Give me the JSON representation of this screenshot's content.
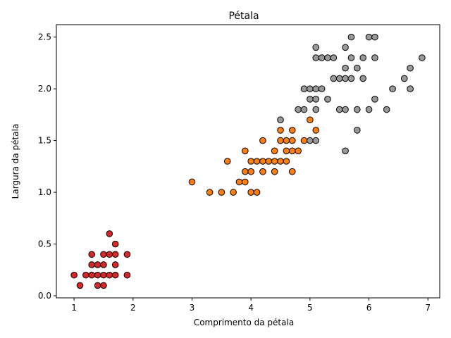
{
  "chart_data": {
    "type": "scatter",
    "title": "Pétala",
    "xlabel": "Comprimento da pétala",
    "ylabel": "Largura da pétala",
    "xlim": [
      0.7,
      7.2
    ],
    "ylim": [
      -0.02,
      2.62
    ],
    "xticks": [
      "1",
      "2",
      "3",
      "4",
      "5",
      "6",
      "7"
    ],
    "yticks": [
      "0.0",
      "0.5",
      "1.0",
      "1.5",
      "2.0",
      "2.5"
    ],
    "grid": false,
    "marker_edge_color": "#000000",
    "series": [
      {
        "color": "#d62728",
        "points": [
          [
            1.0,
            0.2
          ],
          [
            1.1,
            0.1
          ],
          [
            1.2,
            0.2
          ],
          [
            1.3,
            0.2
          ],
          [
            1.3,
            0.3
          ],
          [
            1.3,
            0.4
          ],
          [
            1.4,
            0.1
          ],
          [
            1.4,
            0.2
          ],
          [
            1.4,
            0.3
          ],
          [
            1.5,
            0.1
          ],
          [
            1.5,
            0.2
          ],
          [
            1.5,
            0.3
          ],
          [
            1.5,
            0.4
          ],
          [
            1.6,
            0.2
          ],
          [
            1.6,
            0.4
          ],
          [
            1.6,
            0.6
          ],
          [
            1.7,
            0.2
          ],
          [
            1.7,
            0.3
          ],
          [
            1.7,
            0.4
          ],
          [
            1.7,
            0.5
          ],
          [
            1.9,
            0.2
          ],
          [
            1.9,
            0.4
          ]
        ]
      },
      {
        "color": "#ff7f0e",
        "points": [
          [
            3.0,
            1.1
          ],
          [
            3.3,
            1.0
          ],
          [
            3.5,
            1.0
          ],
          [
            3.6,
            1.3
          ],
          [
            3.7,
            1.0
          ],
          [
            3.8,
            1.1
          ],
          [
            3.9,
            1.1
          ],
          [
            3.9,
            1.2
          ],
          [
            3.9,
            1.4
          ],
          [
            4.0,
            1.0
          ],
          [
            4.0,
            1.2
          ],
          [
            4.0,
            1.3
          ],
          [
            4.1,
            1.0
          ],
          [
            4.1,
            1.3
          ],
          [
            4.2,
            1.2
          ],
          [
            4.2,
            1.3
          ],
          [
            4.2,
            1.5
          ],
          [
            4.3,
            1.3
          ],
          [
            4.4,
            1.2
          ],
          [
            4.4,
            1.3
          ],
          [
            4.4,
            1.4
          ],
          [
            4.5,
            1.3
          ],
          [
            4.5,
            1.5
          ],
          [
            4.5,
            1.6
          ],
          [
            4.6,
            1.3
          ],
          [
            4.6,
            1.4
          ],
          [
            4.6,
            1.5
          ],
          [
            4.7,
            1.2
          ],
          [
            4.7,
            1.4
          ],
          [
            4.7,
            1.5
          ],
          [
            4.7,
            1.6
          ],
          [
            4.8,
            1.4
          ],
          [
            4.9,
            1.5
          ],
          [
            5.0,
            1.7
          ],
          [
            5.1,
            1.6
          ]
        ]
      },
      {
        "color": "#999999",
        "points": [
          [
            4.5,
            1.7
          ],
          [
            4.8,
            1.8
          ],
          [
            4.9,
            1.8
          ],
          [
            4.9,
            2.0
          ],
          [
            5.0,
            1.5
          ],
          [
            5.0,
            1.9
          ],
          [
            5.0,
            2.0
          ],
          [
            5.1,
            1.5
          ],
          [
            5.1,
            1.8
          ],
          [
            5.1,
            1.9
          ],
          [
            5.1,
            2.0
          ],
          [
            5.1,
            2.3
          ],
          [
            5.1,
            2.4
          ],
          [
            5.2,
            2.0
          ],
          [
            5.2,
            2.3
          ],
          [
            5.3,
            1.9
          ],
          [
            5.3,
            2.3
          ],
          [
            5.4,
            2.1
          ],
          [
            5.4,
            2.3
          ],
          [
            5.5,
            1.8
          ],
          [
            5.5,
            2.1
          ],
          [
            5.6,
            1.4
          ],
          [
            5.6,
            1.8
          ],
          [
            5.6,
            2.1
          ],
          [
            5.6,
            2.2
          ],
          [
            5.6,
            2.4
          ],
          [
            5.7,
            2.1
          ],
          [
            5.7,
            2.3
          ],
          [
            5.7,
            2.5
          ],
          [
            5.8,
            1.6
          ],
          [
            5.8,
            1.8
          ],
          [
            5.8,
            2.2
          ],
          [
            5.9,
            2.1
          ],
          [
            5.9,
            2.3
          ],
          [
            6.0,
            1.8
          ],
          [
            6.0,
            2.5
          ],
          [
            6.1,
            1.9
          ],
          [
            6.1,
            2.3
          ],
          [
            6.1,
            2.5
          ],
          [
            6.3,
            1.8
          ],
          [
            6.4,
            2.0
          ],
          [
            6.6,
            2.1
          ],
          [
            6.7,
            2.0
          ],
          [
            6.7,
            2.2
          ],
          [
            6.9,
            2.3
          ]
        ]
      }
    ]
  }
}
